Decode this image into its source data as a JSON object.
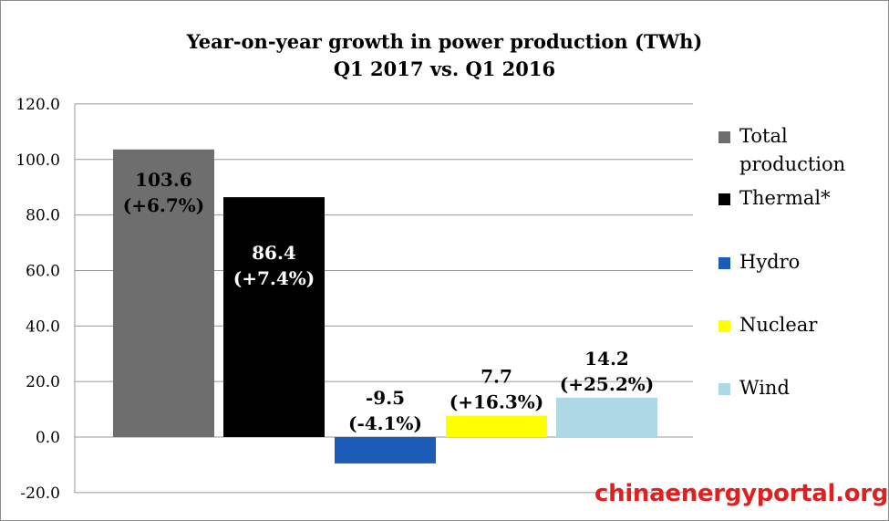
{
  "chart_data": {
    "type": "bar",
    "title": "Year-on-year growth in power production (TWh)",
    "subtitle": "Q1 2017 vs. Q1 2016",
    "xlabel": "",
    "ylabel": "",
    "ylim": [
      -20,
      120
    ],
    "yticks": [
      -20,
      0,
      20,
      40,
      60,
      80,
      100,
      120
    ],
    "ytick_labels": [
      "-20.0",
      "0.0",
      "20.0",
      "40.0",
      "60.0",
      "80.0",
      "100.0",
      "120.0"
    ],
    "grid": true,
    "legend_position": "right",
    "series": [
      {
        "name": "Total production",
        "value": 103.6,
        "value_label": "103.6",
        "pct_label": "(+6.7%)",
        "color": "#6e6e6e",
        "label_inside": true,
        "label_color": "#000000"
      },
      {
        "name": "Thermal*",
        "value": 86.4,
        "value_label": "86.4",
        "pct_label": "(+7.4%)",
        "color": "#000000",
        "label_inside": true,
        "label_color": "#ffffff"
      },
      {
        "name": "Hydro",
        "value": -9.5,
        "value_label": "-9.5",
        "pct_label": "(-4.1%)",
        "color": "#1a5cb8",
        "label_inside": false,
        "label_color": "#000000"
      },
      {
        "name": "Nuclear",
        "value": 7.7,
        "value_label": "7.7",
        "pct_label": "(+16.3%)",
        "color": "#ffff00",
        "label_inside": false,
        "label_color": "#000000"
      },
      {
        "name": "Wind",
        "value": 14.2,
        "value_label": "14.2",
        "pct_label": "(+25.2%)",
        "color": "#add8e6",
        "label_inside": false,
        "label_color": "#000000"
      }
    ]
  },
  "watermark": "chinaenergyportal.org"
}
